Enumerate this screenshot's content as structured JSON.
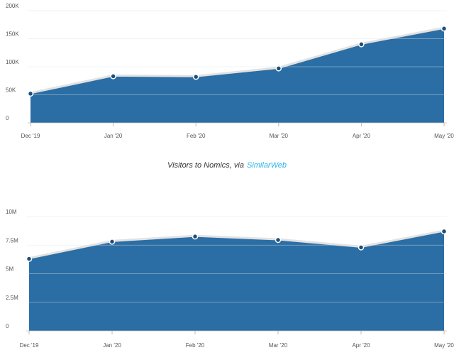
{
  "chart_data": [
    {
      "type": "area",
      "color": "#2b6ea5",
      "categories": [
        "Dec '19",
        "Jan '20",
        "Feb '20",
        "Mar '20",
        "Apr '20",
        "May '20"
      ],
      "values": [
        52000,
        83000,
        82000,
        97000,
        140000,
        168000
      ],
      "ylim": [
        0,
        200000
      ],
      "yticks": [
        0,
        {
          "value": 50000,
          "label": "50K"
        },
        {
          "value": 100000,
          "label": "100K"
        },
        {
          "value": 150000,
          "label": "150K"
        },
        {
          "value": 200000,
          "label": "200K"
        }
      ],
      "grid": true,
      "caption": "Visitors to Nomics, via",
      "caption_source": "SimilarWeb"
    },
    {
      "type": "area",
      "color": "#2b6ea5",
      "categories": [
        "Dec '19",
        "Jan '20",
        "Feb '20",
        "Mar '20",
        "Apr '20",
        "May '20"
      ],
      "values": [
        6300000,
        7800000,
        8250000,
        7950000,
        7300000,
        8700000
      ],
      "ylim": [
        0,
        10000000
      ],
      "yticks": [
        0,
        {
          "value": 2500000,
          "label": "2.5M"
        },
        {
          "value": 5000000,
          "label": "5M"
        },
        {
          "value": 7500000,
          "label": "7.5M"
        },
        {
          "value": 10000000,
          "label": "10M"
        }
      ],
      "grid": true
    }
  ]
}
